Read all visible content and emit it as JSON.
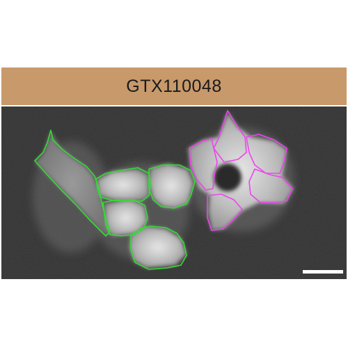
{
  "figure": {
    "label": "GTX110048",
    "label_bar_color": "#c8996b",
    "background_color": "#2b2b2b",
    "outline_colors": {
      "control_cells": "#33dd33",
      "treated_cell": "#ee44ee"
    },
    "scale_bar_color": "#ffffff"
  }
}
